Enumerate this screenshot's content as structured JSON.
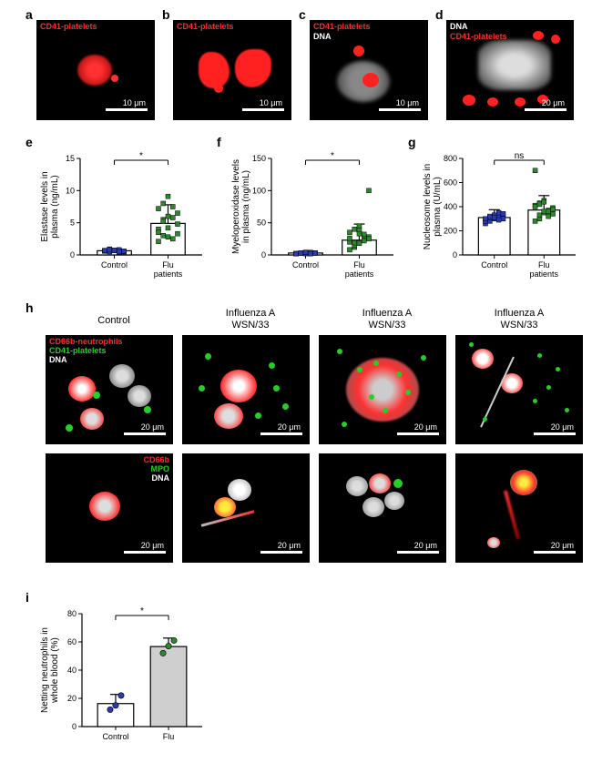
{
  "labels": {
    "a": "a",
    "b": "b",
    "c": "c",
    "d": "d",
    "e": "e",
    "f": "f",
    "g": "g",
    "h": "h",
    "i": "i"
  },
  "micro_top": {
    "a": {
      "label": "CD41-platelets",
      "label_color": "#ff2a2a",
      "scale": "10 μm"
    },
    "b": {
      "label": "CD41-platelets",
      "label_color": "#ff2a2a",
      "scale": "10 μm"
    },
    "c": {
      "label1": "CD41-platelets",
      "label1_color": "#ff2a2a",
      "label2": "DNA",
      "label2_color": "#ffffff",
      "scale": "10 μm"
    },
    "d": {
      "label1": "DNA",
      "label1_color": "#ffffff",
      "label2": "CD41-platelets",
      "label2_color": "#ff2a2a",
      "scale": "20 μm"
    }
  },
  "charts": {
    "e": {
      "type": "scatter-bar",
      "ylabel": "Elastase levels in\nplasma (ng/mL)",
      "ylim": [
        0,
        15
      ],
      "yticks": [
        0,
        5,
        10,
        15
      ],
      "groups": [
        "Control",
        "Flu\npatients"
      ],
      "group_colors": [
        "#2a3ab0",
        "#2a8a2a"
      ],
      "control_points": [
        0.6,
        0.5,
        0.7,
        0.8,
        0.5,
        0.6,
        0.9,
        0.7,
        0.4,
        0.5,
        0.6,
        0.8,
        0.7,
        0.5,
        0.6,
        0.7
      ],
      "flu_points": [
        2.1,
        3.0,
        4.2,
        5.8,
        6.5,
        7.2,
        8.0,
        9.1,
        2.5,
        3.3,
        4.0,
        5.5,
        6.0,
        7.5,
        4.8,
        3.5,
        5.2,
        2.8
      ],
      "bars": [
        {
          "mean": 0.65,
          "sd": 0.25
        },
        {
          "mean": 4.9,
          "sd": 2.9
        }
      ],
      "sig": "*"
    },
    "f": {
      "type": "scatter-bar",
      "ylabel": "Myeloperoxidase levels\nin plasma (ng/mL)",
      "ylim": [
        0,
        150
      ],
      "yticks": [
        0,
        50,
        100,
        150
      ],
      "groups": [
        "Control",
        "Flu\npatients"
      ],
      "group_colors": [
        "#2a3ab0",
        "#2a8a2a"
      ],
      "control_points": [
        2,
        3,
        2,
        4,
        3,
        2,
        3,
        4,
        2,
        3,
        2,
        3,
        4,
        2,
        3,
        2
      ],
      "flu_points": [
        8,
        12,
        18,
        22,
        28,
        35,
        40,
        45,
        30,
        25,
        20,
        15,
        38,
        32,
        100,
        26,
        19,
        33
      ],
      "bars": [
        {
          "mean": 3,
          "sd": 1.5
        },
        {
          "mean": 23,
          "sd": 25
        }
      ],
      "sig": "*"
    },
    "g": {
      "type": "scatter-bar",
      "ylabel": "Nucleosome levels in\nplasma (U/mL)",
      "ylim": [
        0,
        800
      ],
      "yticks": [
        0,
        200,
        400,
        600,
        800
      ],
      "groups": [
        "Control",
        "Flu\npatients"
      ],
      "group_colors": [
        "#2a3ab0",
        "#2a8a2a"
      ],
      "control_points": [
        260,
        280,
        300,
        320,
        340,
        290,
        310,
        330,
        350,
        300,
        280,
        320,
        310,
        290,
        340,
        300
      ],
      "flu_points": [
        280,
        300,
        350,
        370,
        390,
        410,
        430,
        450,
        360,
        380,
        400,
        420,
        440,
        320,
        340,
        700,
        330,
        360
      ],
      "bars": [
        {
          "mean": 310,
          "sd": 65
        },
        {
          "mean": 372,
          "sd": 120
        }
      ],
      "sig": "ns"
    },
    "i": {
      "type": "bar",
      "ylabel": "Netting neutrophils in\nwhole blood (%)",
      "ylim": [
        0,
        80
      ],
      "yticks": [
        0,
        20,
        40,
        60,
        80
      ],
      "groups": [
        "Control",
        "Flu"
      ],
      "bar_colors": [
        "#ffffff",
        "#cfcfcf"
      ],
      "point_colors": [
        "#2a3ab0",
        "#2a8a2a"
      ],
      "control_points": [
        12,
        15,
        22
      ],
      "flu_points": [
        52,
        57,
        61
      ],
      "bars": [
        {
          "mean": 16.3,
          "sd": 6.5
        },
        {
          "mean": 56.7,
          "sd": 6.0
        }
      ],
      "sig": "*"
    }
  },
  "panel_h": {
    "columns": [
      "Control",
      "Influenza A\nWSN/33",
      "Influenza A\nWSN/33",
      "Influenza A\nWSN/33"
    ],
    "row1_label_lines": [
      {
        "text": "CD66b-neutrophils",
        "color": "#ff2a2a"
      },
      {
        "text": "CD41-platelets",
        "color": "#23d023"
      },
      {
        "text": "DNA",
        "color": "#ffffff"
      }
    ],
    "row2_label_lines": [
      {
        "text": "CD66b",
        "color": "#ff2a2a"
      },
      {
        "text": "MPO",
        "color": "#23d023"
      },
      {
        "text": "DNA",
        "color": "#ffffff"
      }
    ],
    "scale": "20 μm"
  },
  "colors": {
    "bg": "#ffffff",
    "axis": "#000000",
    "bar_border": "#000000"
  }
}
